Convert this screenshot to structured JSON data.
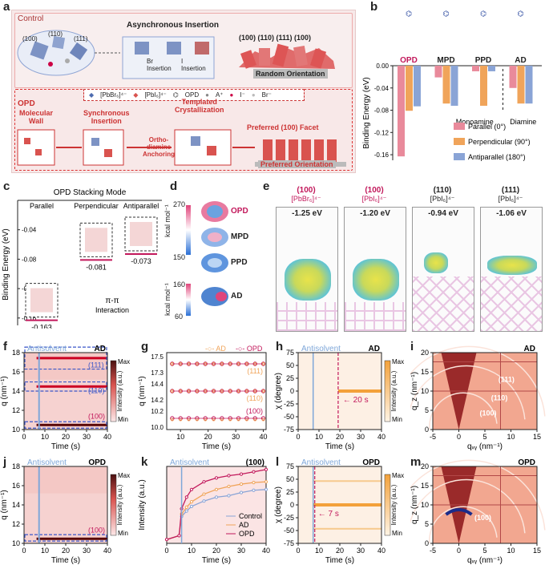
{
  "panel_labels": {
    "a": "a",
    "b": "b",
    "c": "c",
    "d": "d",
    "e": "e",
    "f": "f",
    "g": "g",
    "h": "h",
    "i": "i",
    "j": "j",
    "k": "k",
    "l": "l",
    "m": "m"
  },
  "panel_a": {
    "control_title": "Control",
    "facets_left": [
      "(100)",
      "(110)",
      "(111)"
    ],
    "async_title": "Asynchronous Insertion",
    "br_insertion": "Br\nInsertion",
    "i_insertion": "I\nInsertion",
    "facets_right": "(100) (110) (111) (100)",
    "random_orientation": "Random Orientation",
    "legend": [
      "[PbBr₆]⁴⁻",
      "[PbI₆]⁴⁻",
      "OPD",
      "A⁺",
      "I⁻",
      "Br⁻"
    ],
    "opd_title": "OPD",
    "molecular_wall": "Molecular\nWall",
    "sync_insertion": "Synchronous\nInsertion",
    "ortho_anchoring": "Ortho-\ndiamine\nAnchoring",
    "templated": "Templated\nCrystallization",
    "preferred_facet": "Preferred (100) Facet",
    "preferred_orientation": "Preferred Orientation"
  },
  "panel_c": {
    "title": "OPD Stacking Mode",
    "modes": [
      "Parallel",
      "Perpendicular",
      "Antiparallel"
    ],
    "ylabel": "Binding Energy (eV)",
    "yticks": [
      "-0.04",
      "-0.08",
      "-0.12",
      "-0.16"
    ],
    "values": [
      "-0.163",
      "-0.081",
      "-0.073"
    ],
    "interaction": "π-π\nInteraction"
  },
  "panel_d": {
    "scale1_top": "270",
    "scale1_bottom": "150",
    "scale1_unit": "kcal mol⁻¹",
    "scale2_top": "160",
    "scale2_bottom": "60",
    "scale2_unit": "kcal mol⁻¹",
    "molecules": [
      "OPD",
      "MPD",
      "PPD",
      "AD"
    ]
  },
  "panel_e": {
    "columns": [
      {
        "facet": "(100)",
        "species": "[PbBr₆]⁴⁻",
        "energy": "-1.25 eV"
      },
      {
        "facet": "(100)",
        "species": "[PbI₆]⁴⁻",
        "energy": "-1.20 eV"
      },
      {
        "facet": "(110)",
        "species": "[PbI₆]⁴⁻",
        "energy": "-0.94 eV"
      },
      {
        "facet": "(111)",
        "species": "[PbI₆]⁴⁻",
        "energy": "-1.06 eV"
      }
    ]
  },
  "colors": {
    "parallel": "#e98a9b",
    "perpendicular": "#f0a45a",
    "antiparallel": "#8aa4d6",
    "accent": "#c2185b",
    "antisolvent": "#7fa7d9"
  },
  "chart_data": [
    {
      "id": "b",
      "type": "bar",
      "categories": [
        "OPD",
        "MPD",
        "PPD",
        "AD"
      ],
      "series": [
        {
          "name": "Parallel (0°)",
          "values": [
            -0.163,
            -0.021,
            -0.01,
            -0.04
          ]
        },
        {
          "name": "Perpendicular (90°)",
          "values": [
            -0.081,
            -0.068,
            -0.072,
            -0.068
          ]
        },
        {
          "name": "Antiparallel (180°)",
          "values": [
            -0.073,
            -0.072,
            -0.01,
            -0.068
          ]
        }
      ],
      "ylabel": "Binding Energy (eV)",
      "ylim": [
        -0.17,
        0.0
      ],
      "yticks": [
        "0.00",
        "-0.04",
        "-0.08",
        "-0.12",
        "-0.16"
      ],
      "group_labels": [
        "Monoamine",
        "Diamine"
      ],
      "legend": "bottom-right"
    },
    {
      "id": "f",
      "type": "heatmap",
      "title": "AD",
      "annotation": "Antisolvent",
      "xlabel": "Time (s)",
      "ylabel": "q (nm⁻¹)",
      "xticks": [
        "0",
        "10",
        "20",
        "30",
        "40"
      ],
      "yticks": [
        "10",
        "12",
        "14",
        "16",
        "18"
      ],
      "labels": [
        "(111)",
        "(110)",
        "(100)"
      ],
      "colorbar": [
        "Max",
        "Min"
      ],
      "colorbar_label": "Intensity (a.u.)"
    },
    {
      "id": "g",
      "type": "line",
      "series": [
        {
          "name": "AD",
          "values_111": 17.45,
          "values_110": 14.28,
          "values_100": 10.07
        },
        {
          "name": "OPD",
          "values_111": 17.45,
          "values_110": 14.28,
          "values_100": 10.05
        }
      ],
      "xlabel": "Time (s)",
      "ylabel": "q (nm⁻¹)",
      "xticks": [
        "10",
        "20",
        "30",
        "40"
      ],
      "yticks_top": [
        "17.3",
        "17.5"
      ],
      "yticks_mid": [
        "14.2",
        "14.4"
      ],
      "yticks_bot": [
        "10.0",
        "10.2"
      ],
      "labels": [
        "(111)",
        "(110)",
        "(100)"
      ]
    },
    {
      "id": "h",
      "type": "heatmap",
      "title": "AD",
      "annotation": "Antisolvent",
      "marker": "20 s",
      "xlabel": "Time (s)",
      "ylabel": "χ (degree)",
      "xticks": [
        "0",
        "10",
        "20",
        "30",
        "40"
      ],
      "yticks": [
        "75",
        "50",
        "25",
        "0",
        "-25",
        "-50",
        "-75"
      ],
      "colorbar": [
        "Max",
        "Min"
      ],
      "colorbar_label": "Intensity (a.u.)"
    },
    {
      "id": "i",
      "type": "heatmap",
      "title": "AD",
      "xlabel": "qₓᵧ (nm⁻¹)",
      "ylabel": "q_z (nm⁻¹)",
      "xticks": [
        "-5",
        "0",
        "5",
        "10",
        "15"
      ],
      "yticks": [
        "0",
        "5",
        "10",
        "15",
        "20"
      ],
      "labels": [
        "(111)",
        "(110)",
        "(100)"
      ]
    },
    {
      "id": "j",
      "type": "heatmap",
      "title": "OPD",
      "annotation": "Antisolvent",
      "xlabel": "Time (s)",
      "ylabel": "q (nm⁻¹)",
      "xticks": [
        "0",
        "10",
        "20",
        "30",
        "40"
      ],
      "yticks": [
        "10",
        "12",
        "14",
        "16",
        "18"
      ],
      "labels": [
        "(100)"
      ],
      "colorbar": [
        "Max",
        "Min"
      ],
      "colorbar_label": "Intensity (a.u.)"
    },
    {
      "id": "k",
      "type": "line",
      "title": "(100)",
      "annotation": "Antisolvent",
      "xlabel": "Time (s)",
      "ylabel": "Intensity (a.u.)",
      "xticks": [
        "0",
        "10",
        "20",
        "30",
        "40"
      ],
      "series": [
        {
          "name": "Control",
          "x": [
            0,
            5,
            6,
            8,
            10,
            15,
            20,
            25,
            30,
            35,
            40
          ],
          "values": [
            0.05,
            0.1,
            0.35,
            0.42,
            0.48,
            0.55,
            0.6,
            0.62,
            0.66,
            0.69,
            0.7
          ]
        },
        {
          "name": "AD",
          "x": [
            0,
            5,
            6,
            8,
            10,
            15,
            20,
            25,
            30,
            35,
            40
          ],
          "values": [
            0.05,
            0.1,
            0.38,
            0.47,
            0.54,
            0.64,
            0.7,
            0.74,
            0.77,
            0.79,
            0.8
          ]
        },
        {
          "name": "OPD",
          "x": [
            0,
            5,
            6,
            8,
            10,
            15,
            20,
            25,
            30,
            35,
            40
          ],
          "values": [
            0.05,
            0.1,
            0.45,
            0.6,
            0.7,
            0.8,
            0.85,
            0.88,
            0.9,
            0.93,
            0.96
          ]
        }
      ]
    },
    {
      "id": "l",
      "type": "heatmap",
      "title": "OPD",
      "annotation": "Antisolvent",
      "marker": "7 s",
      "xlabel": "Time (s)",
      "ylabel": "χ (degree)",
      "xticks": [
        "0",
        "10",
        "20",
        "30",
        "40"
      ],
      "yticks": [
        "75",
        "50",
        "25",
        "0",
        "-25",
        "-50",
        "-75"
      ],
      "colorbar": [
        "Max",
        "Min"
      ],
      "colorbar_label": "Intensity (a.u.)"
    },
    {
      "id": "m",
      "type": "heatmap",
      "title": "OPD",
      "xlabel": "qₓᵧ (nm⁻¹)",
      "ylabel": "q_z (nm⁻¹)",
      "xticks": [
        "-5",
        "0",
        "5",
        "10",
        "15"
      ],
      "yticks": [
        "0",
        "5",
        "10",
        "15",
        "20"
      ],
      "labels": [
        "(100)"
      ]
    }
  ]
}
